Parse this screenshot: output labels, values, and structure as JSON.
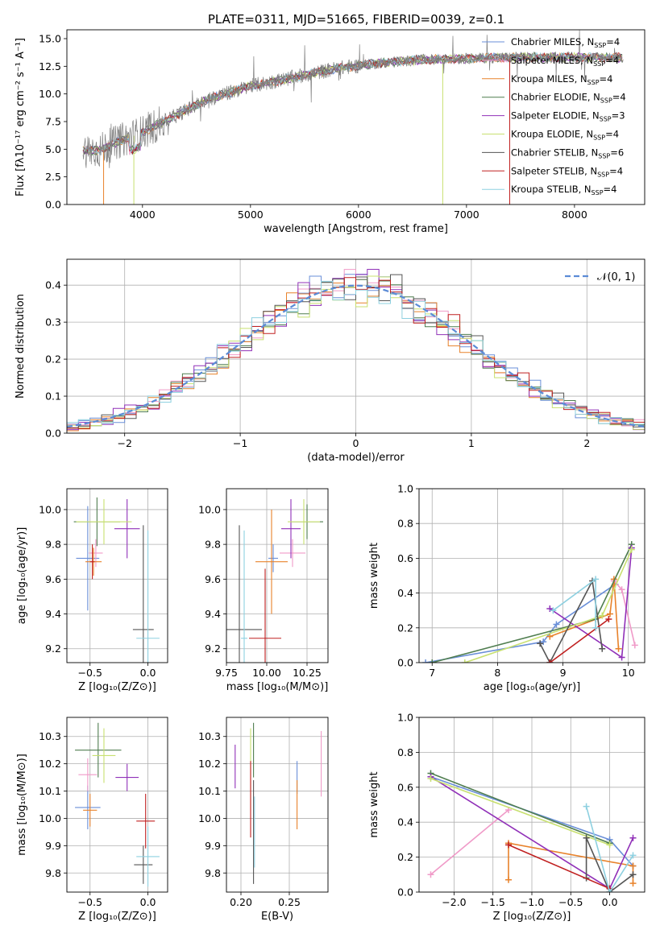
{
  "figure": {
    "title": "PLATE=0311, MJD=51665, FIBERID=0039, z=0.1"
  },
  "colors": {
    "model_colors": [
      "#6a8fd8",
      "#f09ac8",
      "#e8822b",
      "#4f7d4f",
      "#9030b8",
      "#c8e070",
      "#555555",
      "#c02020",
      "#8ed0e0"
    ],
    "data_gray": "#808080",
    "normal_curve": "#5b8bd6",
    "grid": "#b0b0b0"
  },
  "chart_data": [
    {
      "id": "spectrum",
      "type": "line",
      "xlabel": "wavelength [Angstrom, rest frame]",
      "ylabel": "Flux [fλ10⁻¹⁷ erg cm⁻² s⁻¹ A⁻¹]",
      "xlim": [
        3300,
        8650
      ],
      "ylim": [
        0,
        15.8
      ],
      "xticks": [
        4000,
        5000,
        6000,
        7000,
        8000
      ],
      "yticks": [
        0.0,
        2.5,
        5.0,
        7.5,
        10.0,
        12.5,
        15.0
      ],
      "grid": false,
      "legend_position": "upper-right",
      "continuum": {
        "x": [
          3450,
          3600,
          3800,
          4000,
          4300,
          4600,
          5000,
          5400,
          5800,
          6200,
          6600,
          7000,
          7400,
          7600,
          8000,
          8450
        ],
        "y": [
          4.9,
          4.9,
          5.8,
          6.5,
          8.0,
          9.5,
          10.7,
          11.5,
          12.3,
          12.8,
          13.1,
          13.2,
          13.3,
          13.3,
          13.3,
          13.3
        ]
      },
      "legend": [
        {
          "name": "Chabrier MILES",
          "nssp": "4"
        },
        {
          "name": "Salpeter MILES",
          "nssp": "4"
        },
        {
          "name": "Kroupa MILES",
          "nssp": "4"
        },
        {
          "name": "Chabrier ELODIE",
          "nssp": "4"
        },
        {
          "name": "Salpeter ELODIE",
          "nssp": "3"
        },
        {
          "name": "Kroupa ELODIE",
          "nssp": "4"
        },
        {
          "name": "Chabrier STELIB",
          "nssp": "6"
        },
        {
          "name": "Salpeter STELIB",
          "nssp": "4"
        },
        {
          "name": "Kroupa STELIB",
          "nssp": "4"
        }
      ]
    },
    {
      "id": "residuals",
      "type": "line",
      "xlabel": "(data-model)/error",
      "ylabel": "Normed distribution",
      "xlim": [
        -2.5,
        2.5
      ],
      "ylim": [
        0,
        0.47
      ],
      "xticks": [
        -2,
        -1,
        0,
        1,
        2
      ],
      "yticks": [
        0.0,
        0.1,
        0.2,
        0.3,
        0.4
      ],
      "grid": true,
      "legend_position": "upper-right",
      "legend_label": "𝒩(0, 1)",
      "bins": 50
    },
    {
      "id": "age_vs_Z",
      "type": "scatter",
      "xlabel": "Z [log₁₀(Z/Z⊙)]",
      "ylabel": "age  [log₁₀(age/yr)]",
      "xlim": [
        -0.7,
        0.17
      ],
      "ylim": [
        9.12,
        10.12
      ],
      "xticks": [
        -0.5,
        0.0
      ],
      "yticks": [
        9.2,
        9.4,
        9.6,
        9.8,
        10.0
      ],
      "grid": true,
      "points": [
        {
          "c": 0,
          "x": -0.52,
          "y": 9.72,
          "xerr": 0.1,
          "yerr": 0.3
        },
        {
          "c": 1,
          "x": -0.45,
          "y": 9.75,
          "xerr": 0.06,
          "yerr": 0.08
        },
        {
          "c": 2,
          "x": -0.47,
          "y": 9.7,
          "xerr": 0.07,
          "yerr": 0.08
        },
        {
          "c": 3,
          "x": -0.44,
          "y": 9.93,
          "xerr": 0.2,
          "yerr": 0.14
        },
        {
          "c": 4,
          "x": -0.18,
          "y": 9.89,
          "xerr": 0.11,
          "yerr": 0.17
        },
        {
          "c": 5,
          "x": -0.38,
          "y": 9.93,
          "xerr": 0.24,
          "yerr": 0.13
        },
        {
          "c": 6,
          "x": -0.04,
          "y": 9.31,
          "xerr": 0.09,
          "yerr": 0.6
        },
        {
          "c": 7,
          "x": -0.48,
          "y": 9.7,
          "xerr": 0.02,
          "yerr": 0.1
        },
        {
          "c": 8,
          "x": 0.0,
          "y": 9.26,
          "xerr": 0.1,
          "yerr": 0.62
        }
      ]
    },
    {
      "id": "age_vs_mass",
      "type": "scatter",
      "xlabel": "mass [log₁₀(M/M⊙)]",
      "ylabel": "",
      "xlim": [
        9.75,
        10.38
      ],
      "ylim": [
        9.12,
        10.12
      ],
      "xticks": [
        9.75,
        10.0,
        10.25
      ],
      "yticks": [
        9.2,
        9.4,
        9.6,
        9.8,
        10.0
      ],
      "grid": true,
      "points": [
        {
          "c": 0,
          "x": 10.04,
          "y": 9.72,
          "xerr": 0.03,
          "yerr": 0.08
        },
        {
          "c": 1,
          "x": 10.16,
          "y": 9.75,
          "xerr": 0.08,
          "yerr": 0.08
        },
        {
          "c": 2,
          "x": 10.03,
          "y": 9.7,
          "xerr": 0.1,
          "yerr": 0.3
        },
        {
          "c": 3,
          "x": 10.25,
          "y": 9.93,
          "xerr": 0.1,
          "yerr": 0.1
        },
        {
          "c": 4,
          "x": 10.15,
          "y": 9.89,
          "xerr": 0.06,
          "yerr": 0.17
        },
        {
          "c": 5,
          "x": 10.23,
          "y": 9.93,
          "xerr": 0.1,
          "yerr": 0.13
        },
        {
          "c": 6,
          "x": 9.83,
          "y": 9.31,
          "xerr": 0.14,
          "yerr": 0.6
        },
        {
          "c": 7,
          "x": 9.99,
          "y": 9.26,
          "xerr": 0.1,
          "yerr": 0.4
        },
        {
          "c": 8,
          "x": 9.86,
          "y": 9.26,
          "xerr": 0.02,
          "yerr": 0.62
        }
      ]
    },
    {
      "id": "massweight_vs_age",
      "type": "line",
      "xlabel": "age  [log₁₀(age/yr)]",
      "ylabel": "mass weight",
      "xlim": [
        6.8,
        10.25
      ],
      "ylim": [
        0,
        1.0
      ],
      "xticks": [
        7,
        8,
        9,
        10
      ],
      "yticks": [
        0.0,
        0.2,
        0.4,
        0.6,
        0.8,
        1.0
      ],
      "grid": true,
      "series": [
        {
          "c": 0,
          "x": [
            6.9,
            8.7,
            8.9,
            9.8
          ],
          "y": [
            0.0,
            0.12,
            0.22,
            0.45
          ]
        },
        {
          "c": 1,
          "x": [
            9.78,
            9.9,
            10.1
          ],
          "y": [
            0.47,
            0.42,
            0.1
          ]
        },
        {
          "c": 2,
          "x": [
            8.8,
            9.72,
            9.78,
            9.85
          ],
          "y": [
            0.15,
            0.28,
            0.48,
            0.08
          ]
        },
        {
          "c": 3,
          "x": [
            7.0,
            9.5,
            10.05
          ],
          "y": [
            0.0,
            0.25,
            0.68
          ]
        },
        {
          "c": 4,
          "x": [
            8.8,
            9.9,
            10.05
          ],
          "y": [
            0.31,
            0.03,
            0.66
          ]
        },
        {
          "c": 5,
          "x": [
            7.5,
            9.6,
            10.05
          ],
          "y": [
            0.0,
            0.27,
            0.65
          ]
        },
        {
          "c": 6,
          "x": [
            8.65,
            8.8,
            9.45,
            9.6
          ],
          "y": [
            0.11,
            0.0,
            0.47,
            0.08
          ]
        },
        {
          "c": 7,
          "x": [
            8.8,
            9.7
          ],
          "y": [
            0.0,
            0.25
          ]
        },
        {
          "c": 8,
          "x": [
            8.85,
            9.5,
            9.5
          ],
          "y": [
            0.3,
            0.48,
            0.2
          ]
        }
      ]
    },
    {
      "id": "mass_vs_Z",
      "type": "scatter",
      "xlabel": "Z [log₁₀(Z/Z⊙)]",
      "ylabel": "mass [log₁₀(M/M⊙)]",
      "xlim": [
        -0.7,
        0.17
      ],
      "ylim": [
        9.73,
        10.37
      ],
      "xticks": [
        -0.5,
        0.0
      ],
      "yticks": [
        9.8,
        9.9,
        10.0,
        10.1,
        10.2,
        10.3
      ],
      "grid": true,
      "points": [
        {
          "c": 0,
          "x": -0.52,
          "y": 10.04,
          "xerr": 0.11,
          "yerr": 0.08
        },
        {
          "c": 1,
          "x": -0.52,
          "y": 10.16,
          "xerr": 0.08,
          "yerr": 0.06
        },
        {
          "c": 2,
          "x": -0.5,
          "y": 10.03,
          "xerr": 0.06,
          "yerr": 0.06
        },
        {
          "c": 3,
          "x": -0.43,
          "y": 10.25,
          "xerr": 0.2,
          "yerr": 0.1
        },
        {
          "c": 4,
          "x": -0.18,
          "y": 10.15,
          "xerr": 0.1,
          "yerr": 0.05
        },
        {
          "c": 5,
          "x": -0.38,
          "y": 10.23,
          "xerr": 0.1,
          "yerr": 0.1
        },
        {
          "c": 6,
          "x": -0.04,
          "y": 9.83,
          "xerr": 0.08,
          "yerr": 0.07
        },
        {
          "c": 7,
          "x": -0.02,
          "y": 9.99,
          "xerr": 0.08,
          "yerr": 0.1
        },
        {
          "c": 8,
          "x": 0.0,
          "y": 9.86,
          "xerr": 0.1,
          "yerr": 0.11
        }
      ]
    },
    {
      "id": "mass_vs_EBV",
      "type": "scatter",
      "xlabel": "E(B-V)",
      "ylabel": "",
      "xlim": [
        0.185,
        0.29
      ],
      "ylim": [
        9.73,
        10.37
      ],
      "xticks": [
        0.2,
        0.25
      ],
      "yticks": [
        9.8,
        9.9,
        10.0,
        10.1,
        10.2,
        10.3
      ],
      "grid": true,
      "points": [
        {
          "c": 0,
          "x": 0.258,
          "y": 10.15,
          "xerr": 0,
          "yerr": 0.06
        },
        {
          "c": 1,
          "x": 0.283,
          "y": 10.2,
          "xerr": 0,
          "yerr": 0.12
        },
        {
          "c": 2,
          "x": 0.258,
          "y": 10.05,
          "xerr": 0,
          "yerr": 0.09
        },
        {
          "c": 3,
          "x": 0.213,
          "y": 10.25,
          "xerr": 0,
          "yerr": 0.1
        },
        {
          "c": 4,
          "x": 0.194,
          "y": 10.19,
          "xerr": 0,
          "yerr": 0.08
        },
        {
          "c": 5,
          "x": 0.21,
          "y": 10.18,
          "xerr": 0,
          "yerr": 0.15
        },
        {
          "c": 6,
          "x": 0.213,
          "y": 9.95,
          "xerr": 0,
          "yerr": 0.19
        },
        {
          "c": 7,
          "x": 0.21,
          "y": 10.07,
          "xerr": 0,
          "yerr": 0.14
        },
        {
          "c": 8,
          "x": 0.214,
          "y": 9.95,
          "xerr": 0,
          "yerr": 0.13
        }
      ]
    },
    {
      "id": "massweight_vs_Z",
      "type": "line",
      "xlabel": "Z [log₁₀(Z/Z⊙)]",
      "ylabel": "mass weight",
      "xlim": [
        -2.45,
        0.45
      ],
      "ylim": [
        0,
        1.0
      ],
      "xticks": [
        -2.0,
        -1.5,
        -1.0,
        -0.5,
        0.0
      ],
      "yticks": [
        0.0,
        0.2,
        0.4,
        0.6,
        0.8,
        1.0
      ],
      "grid": true,
      "series": [
        {
          "c": 0,
          "x": [
            -2.3,
            0.0,
            0.3
          ],
          "y": [
            0.66,
            0.3,
            0.15
          ]
        },
        {
          "c": 1,
          "x": [
            -2.3,
            -1.3
          ],
          "y": [
            0.1,
            0.47
          ]
        },
        {
          "c": 2,
          "x": [
            -1.3,
            -1.3,
            0.3,
            0.3
          ],
          "y": [
            0.07,
            0.28,
            0.15,
            0.05
          ]
        },
        {
          "c": 3,
          "x": [
            -2.3,
            0.0
          ],
          "y": [
            0.68,
            0.28
          ]
        },
        {
          "c": 4,
          "x": [
            -2.3,
            0.0,
            0.3
          ],
          "y": [
            0.66,
            0.02,
            0.31
          ]
        },
        {
          "c": 5,
          "x": [
            -2.3,
            0.0
          ],
          "y": [
            0.65,
            0.27
          ]
        },
        {
          "c": 6,
          "x": [
            -0.3,
            -0.3,
            0.0,
            0.3
          ],
          "y": [
            0.08,
            0.31,
            0.0,
            0.1
          ]
        },
        {
          "c": 7,
          "x": [
            -1.3,
            0.0
          ],
          "y": [
            0.27,
            0.02
          ]
        },
        {
          "c": 8,
          "x": [
            -0.3,
            0.0,
            0.3
          ],
          "y": [
            0.49,
            0.0,
            0.21
          ]
        }
      ]
    }
  ]
}
